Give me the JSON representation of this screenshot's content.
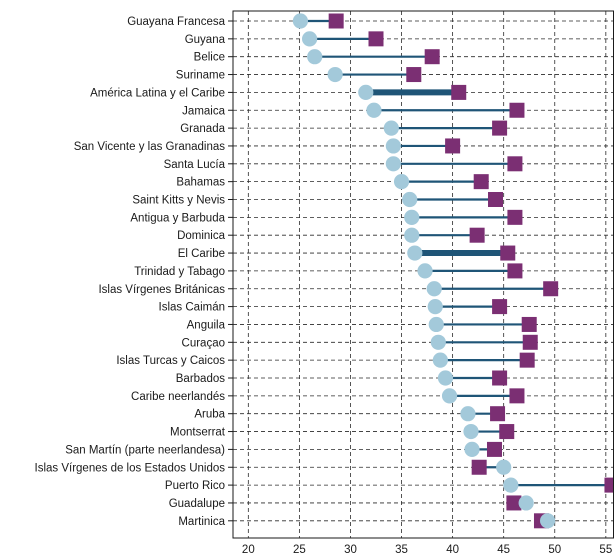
{
  "chart_data": {
    "type": "dumbbell",
    "categories": [
      "Guayana Francesa",
      "Guyana",
      "Belice",
      "Suriname",
      "América Latina y el Caribe",
      "Jamaica",
      "Granada",
      "San Vicente y las Granadinas",
      "Santa Lucía",
      "Bahamas",
      "Saint Kitts y Nevis",
      "Antigua y Barbuda",
      "Dominica",
      "El Caribe",
      "Trinidad y Tabago",
      "Islas Vírgenes Británicas",
      "Islas Caimán",
      "Anguila",
      "Curaçao",
      "Islas Turcas y Caicos",
      "Barbados",
      "Caribe neerlandés",
      "Aruba",
      "Montserrat",
      "San Martín (parte neerlandesa)",
      "Islas Vírgenes de los Estados Unidos",
      "Puerto Rico",
      "Guadalupe",
      "Martinica"
    ],
    "series": [
      {
        "marker": "circle",
        "color": "#a3c9da",
        "values": [
          25.1,
          26.0,
          26.5,
          28.5,
          31.5,
          32.3,
          34.0,
          34.2,
          34.2,
          35.0,
          35.8,
          36.0,
          36.0,
          36.3,
          37.3,
          38.2,
          38.3,
          38.4,
          38.6,
          38.8,
          39.3,
          39.7,
          41.5,
          41.8,
          41.9,
          45.0,
          45.7,
          47.2,
          49.3
        ]
      },
      {
        "marker": "square",
        "color": "#7b2f73",
        "values": [
          28.6,
          32.5,
          38.0,
          36.2,
          40.6,
          46.3,
          44.6,
          40.0,
          46.1,
          42.8,
          44.2,
          46.1,
          42.4,
          45.4,
          46.1,
          49.6,
          44.6,
          47.5,
          47.6,
          47.3,
          44.6,
          46.3,
          44.4,
          45.3,
          44.1,
          42.6,
          55.6,
          46.0,
          48.7
        ]
      }
    ],
    "highlight": [
      "América Latina y el Caribe",
      "El Caribe"
    ],
    "line_color": "#1f5577",
    "x_ticks": [
      20,
      25,
      30,
      35,
      40,
      45,
      50,
      55
    ],
    "xlim": [
      18.5,
      55.8
    ],
    "grid": "dashed"
  }
}
